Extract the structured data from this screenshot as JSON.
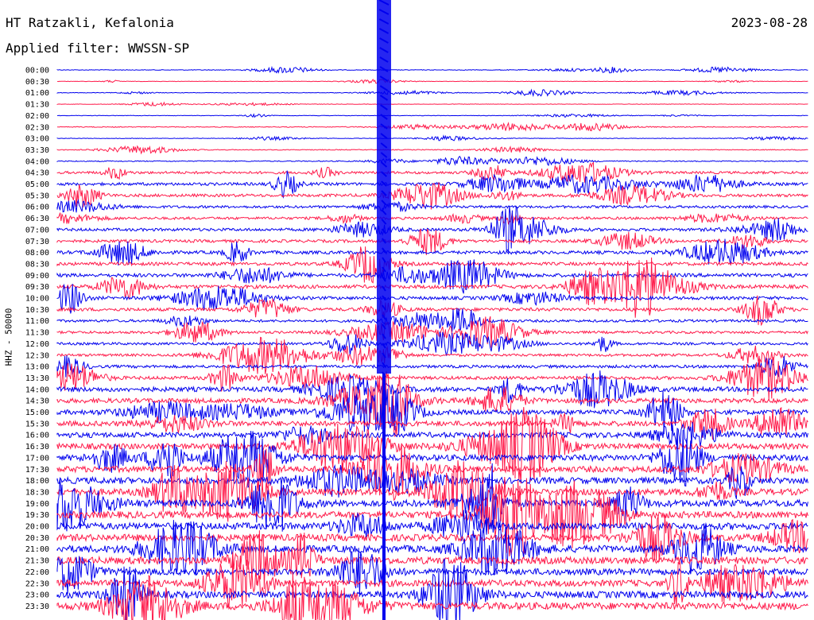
{
  "header": {
    "station": "HT Ratzakli, Kefalonia",
    "filter": "Applied filter: WWSSN-SP",
    "date": "2023-08-28"
  },
  "chart_data": {
    "type": "line",
    "title": "HT Ratzakli, Kefalonia",
    "ylabel": "HHZ - 50000",
    "rows": [
      "00:00",
      "00:30",
      "01:00",
      "01:30",
      "02:00",
      "02:30",
      "03:00",
      "03:30",
      "04:00",
      "04:30",
      "05:00",
      "05:30",
      "06:00",
      "06:30",
      "07:00",
      "07:30",
      "08:00",
      "08:30",
      "09:00",
      "09:30",
      "10:00",
      "10:30",
      "11:00",
      "11:30",
      "12:00",
      "12:30",
      "13:00",
      "13:30",
      "14:00",
      "14:30",
      "15:00",
      "15:30",
      "16:00",
      "16:30",
      "17:00",
      "17:30",
      "18:00",
      "18:30",
      "19:00",
      "19:30",
      "20:00",
      "20:30",
      "21:00",
      "21:30",
      "22:00",
      "22:30",
      "23:00",
      "23:30"
    ],
    "row_colors": [
      "#0000ee",
      "#ff1a4a"
    ],
    "row_amplitude_level": [
      0.15,
      0.08,
      0.12,
      0.08,
      0.1,
      0.2,
      0.12,
      0.2,
      0.25,
      0.3,
      0.35,
      0.35,
      0.3,
      0.3,
      0.35,
      0.35,
      0.4,
      0.4,
      0.45,
      0.45,
      0.4,
      0.4,
      0.3,
      0.3,
      0.3,
      0.3,
      0.35,
      0.4,
      0.6,
      0.6,
      0.6,
      0.65,
      0.7,
      0.75,
      0.8,
      0.8,
      0.85,
      0.85,
      0.9,
      0.9,
      0.9,
      0.9,
      0.95,
      0.95,
      0.85,
      0.85,
      0.9,
      0.95
    ],
    "grid": false
  }
}
